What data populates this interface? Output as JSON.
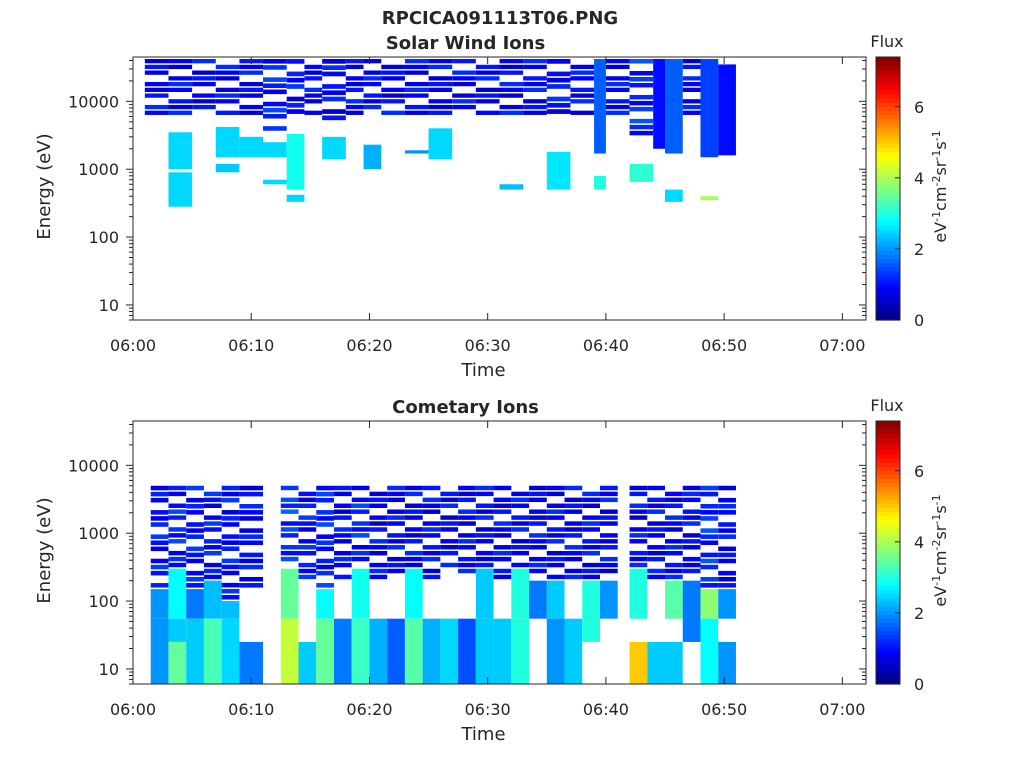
{
  "figure_title": "RPCICA091113T06.PNG",
  "colormap": "jet",
  "chart_data": [
    {
      "type": "heatmap",
      "title": "Solar Wind Ions",
      "xlabel": "Time",
      "ylabel": "Energy (eV)",
      "yscale": "log",
      "ylim": [
        6,
        45000
      ],
      "xlim": [
        "06:00",
        "07:02"
      ],
      "x_ticks": [
        "06:00",
        "06:10",
        "06:20",
        "06:30",
        "06:40",
        "06:50",
        "07:00"
      ],
      "y_ticks": [
        "10",
        "100",
        "1000",
        "10000"
      ],
      "colorbar": {
        "title": "Flux",
        "label": "eV-1cm-2sr-1s-1",
        "range": [
          0,
          7.4
        ],
        "ticks": [
          "0",
          "2",
          "4",
          "6"
        ]
      },
      "columns": [
        {
          "start": "06:01",
          "end": "06:03",
          "bins": [
            [
              6000,
              42000,
              1.0
            ]
          ]
        },
        {
          "start": "06:03",
          "end": "06:05",
          "bins": [
            [
              6000,
              42000,
              1.0
            ],
            [
              1000,
              3500,
              2.5
            ],
            [
              280,
              900,
              2.5
            ]
          ]
        },
        {
          "start": "06:05",
          "end": "06:07",
          "bins": [
            [
              6000,
              42000,
              1.0
            ]
          ]
        },
        {
          "start": "06:07",
          "end": "06:09",
          "bins": [
            [
              6000,
              42000,
              1.0
            ],
            [
              1500,
              4200,
              2.5
            ],
            [
              900,
              1200,
              2.4
            ]
          ]
        },
        {
          "start": "06:09",
          "end": "06:11",
          "bins": [
            [
              6000,
              42000,
              1.0
            ],
            [
              1500,
              3000,
              2.5
            ]
          ]
        },
        {
          "start": "06:11",
          "end": "06:13",
          "bins": [
            [
              3500,
              42000,
              1.2
            ],
            [
              1500,
              2500,
              2.5
            ],
            [
              600,
              700,
              2.5
            ]
          ]
        },
        {
          "start": "06:13",
          "end": "06:14.5",
          "bins": [
            [
              5000,
              42000,
              1.1
            ],
            [
              500,
              3300,
              2.9
            ],
            [
              330,
              420,
              2.5
            ]
          ]
        },
        {
          "start": "06:14.5",
          "end": "06:16",
          "bins": [
            [
              6000,
              42000,
              1.0
            ]
          ]
        },
        {
          "start": "06:16",
          "end": "06:18",
          "bins": [
            [
              5000,
              42000,
              1.0
            ],
            [
              1400,
              3000,
              2.5
            ]
          ]
        },
        {
          "start": "06:18",
          "end": "06:19.5",
          "bins": [
            [
              6000,
              42000,
              1.0
            ]
          ]
        },
        {
          "start": "06:19.5",
          "end": "06:21",
          "bins": [
            [
              6000,
              42000,
              1.0
            ],
            [
              1000,
              2300,
              2.2
            ]
          ]
        },
        {
          "start": "06:21",
          "end": "06:23",
          "bins": [
            [
              6000,
              42000,
              1.0
            ]
          ]
        },
        {
          "start": "06:23",
          "end": "06:25",
          "bins": [
            [
              6000,
              42000,
              1.0
            ],
            [
              1700,
              1900,
              2.0
            ]
          ]
        },
        {
          "start": "06:25",
          "end": "06:27",
          "bins": [
            [
              6000,
              42000,
              1.0
            ],
            [
              1400,
              4000,
              2.5
            ]
          ]
        },
        {
          "start": "06:27",
          "end": "06:29",
          "bins": [
            [
              6000,
              42000,
              1.0
            ]
          ]
        },
        {
          "start": "06:29",
          "end": "06:31",
          "bins": [
            [
              6000,
              42000,
              1.0
            ]
          ]
        },
        {
          "start": "06:31",
          "end": "06:33",
          "bins": [
            [
              6000,
              42000,
              1.0
            ],
            [
              500,
              600,
              2.3
            ]
          ]
        },
        {
          "start": "06:33",
          "end": "06:35",
          "bins": [
            [
              6000,
              42000,
              1.0
            ]
          ]
        },
        {
          "start": "06:35",
          "end": "06:37",
          "bins": [
            [
              5000,
              42000,
              1.1
            ],
            [
              500,
              1800,
              2.6
            ]
          ]
        },
        {
          "start": "06:37",
          "end": "06:39",
          "bins": [
            [
              6000,
              42000,
              1.0
            ]
          ]
        },
        {
          "start": "06:39",
          "end": "06:40",
          "bins": [
            [
              1700,
              42000,
              1.6
            ],
            [
              500,
              800,
              3.0
            ]
          ]
        },
        {
          "start": "06:40",
          "end": "06:42",
          "bins": [
            [
              6000,
              42000,
              1.0
            ]
          ]
        },
        {
          "start": "06:42",
          "end": "06:44",
          "bins": [
            [
              3000,
              42000,
              1.3
            ],
            [
              650,
              1200,
              3.1
            ]
          ]
        },
        {
          "start": "06:44",
          "end": "06:45",
          "bins": [
            [
              2000,
              42000,
              1.0
            ]
          ]
        },
        {
          "start": "06:45",
          "end": "06:46.5",
          "bins": [
            [
              1700,
              42000,
              1.6
            ],
            [
              330,
              500,
              2.5
            ]
          ]
        },
        {
          "start": "06:46.5",
          "end": "06:48",
          "bins": [
            [
              6000,
              42000,
              1.0
            ]
          ]
        },
        {
          "start": "06:48",
          "end": "06:49.5",
          "bins": [
            [
              1500,
              42000,
              1.4
            ],
            [
              350,
              400,
              4.0
            ]
          ]
        },
        {
          "start": "06:49.5",
          "end": "06:51",
          "bins": [
            [
              1600,
              35000,
              1.0
            ]
          ]
        }
      ]
    },
    {
      "type": "heatmap",
      "title": "Cometary Ions",
      "xlabel": "Time",
      "ylabel": "Energy (eV)",
      "yscale": "log",
      "ylim": [
        6,
        45000
      ],
      "xlim": [
        "06:00",
        "07:02"
      ],
      "x_ticks": [
        "06:00",
        "06:10",
        "06:20",
        "06:30",
        "06:40",
        "06:50",
        "07:00"
      ],
      "y_ticks": [
        "10",
        "100",
        "1000",
        "10000"
      ],
      "colorbar": {
        "title": "Flux",
        "label": "eV-1cm-2sr-1s-1",
        "range": [
          0,
          7.4
        ],
        "ticks": [
          "0",
          "2",
          "4",
          "6"
        ]
      },
      "columns": [
        {
          "start": "06:01.5",
          "end": "06:03",
          "bins": [
            [
              150,
              5000,
              1.1
            ],
            [
              55,
              150,
              2.0
            ],
            [
              6,
              55,
              2.0
            ]
          ]
        },
        {
          "start": "06:03",
          "end": "06:04.5",
          "bins": [
            [
              300,
              5000,
              1.2
            ],
            [
              55,
              300,
              2.8
            ],
            [
              25,
              55,
              2.4
            ],
            [
              6,
              25,
              3.5
            ]
          ]
        },
        {
          "start": "06:04.5",
          "end": "06:06",
          "bins": [
            [
              150,
              5000,
              1.1
            ],
            [
              55,
              150,
              1.8
            ],
            [
              6,
              55,
              2.4
            ]
          ]
        },
        {
          "start": "06:06",
          "end": "06:07.5",
          "bins": [
            [
              200,
              5000,
              1.1
            ],
            [
              55,
              200,
              2.3
            ],
            [
              6,
              55,
              3.3
            ]
          ]
        },
        {
          "start": "06:07.5",
          "end": "06:09",
          "bins": [
            [
              100,
              5000,
              1.1
            ],
            [
              55,
              100,
              2.3
            ],
            [
              6,
              55,
              2.5
            ]
          ]
        },
        {
          "start": "06:09",
          "end": "06:11",
          "bins": [
            [
              150,
              5000,
              1.0
            ],
            [
              6,
              25,
              1.8
            ]
          ]
        },
        {
          "start": "06:12.5",
          "end": "06:14",
          "bins": [
            [
              300,
              5000,
              1.4
            ],
            [
              55,
              300,
              3.5
            ],
            [
              6,
              55,
              4.2
            ]
          ]
        },
        {
          "start": "06:14",
          "end": "06:15.5",
          "bins": [
            [
              200,
              5000,
              1.1
            ],
            [
              6,
              25,
              2.4
            ]
          ]
        },
        {
          "start": "06:15.5",
          "end": "06:17",
          "bins": [
            [
              150,
              5000,
              1.2
            ],
            [
              55,
              150,
              2.8
            ],
            [
              6,
              55,
              3.5
            ]
          ]
        },
        {
          "start": "06:17",
          "end": "06:18.5",
          "bins": [
            [
              200,
              5000,
              1.0
            ],
            [
              6,
              55,
              1.8
            ]
          ]
        },
        {
          "start": "06:18.5",
          "end": "06:20",
          "bins": [
            [
              300,
              5000,
              1.2
            ],
            [
              55,
              300,
              2.9
            ],
            [
              6,
              55,
              3.2
            ]
          ]
        },
        {
          "start": "06:20",
          "end": "06:21.5",
          "bins": [
            [
              200,
              5000,
              1.0
            ],
            [
              6,
              55,
              2.2
            ]
          ]
        },
        {
          "start": "06:21.5",
          "end": "06:23",
          "bins": [
            [
              200,
              5000,
              1.0
            ],
            [
              6,
              55,
              1.6
            ]
          ]
        },
        {
          "start": "06:23",
          "end": "06:24.5",
          "bins": [
            [
              300,
              5000,
              1.0
            ],
            [
              55,
              300,
              2.8
            ],
            [
              6,
              55,
              3.4
            ]
          ]
        },
        {
          "start": "06:24.5",
          "end": "06:26",
          "bins": [
            [
              200,
              5000,
              1.0
            ],
            [
              6,
              55,
              2.2
            ]
          ]
        },
        {
          "start": "06:26",
          "end": "06:27.5",
          "bins": [
            [
              300,
              5000,
              1.0
            ],
            [
              6,
              55,
              2.5
            ]
          ]
        },
        {
          "start": "06:27.5",
          "end": "06:29",
          "bins": [
            [
              200,
              5000,
              1.0
            ],
            [
              6,
              55,
              1.5
            ]
          ]
        },
        {
          "start": "06:29",
          "end": "06:30.5",
          "bins": [
            [
              300,
              5000,
              1.0
            ],
            [
              55,
              300,
              2.4
            ],
            [
              6,
              55,
              2.4
            ]
          ]
        },
        {
          "start": "06:30.5",
          "end": "06:32",
          "bins": [
            [
              200,
              5000,
              1.0
            ],
            [
              6,
              55,
              2.4
            ]
          ]
        },
        {
          "start": "06:32",
          "end": "06:33.5",
          "bins": [
            [
              300,
              5000,
              1.0
            ],
            [
              55,
              300,
              3.0
            ],
            [
              6,
              55,
              3.0
            ]
          ]
        },
        {
          "start": "06:33.5",
          "end": "06:35",
          "bins": [
            [
              200,
              5000,
              1.0
            ],
            [
              55,
              200,
              1.8
            ]
          ]
        },
        {
          "start": "06:35",
          "end": "06:36.5",
          "bins": [
            [
              200,
              5000,
              1.0
            ],
            [
              55,
              200,
              2.4
            ],
            [
              6,
              55,
              2.0
            ]
          ]
        },
        {
          "start": "06:36.5",
          "end": "06:38",
          "bins": [
            [
              200,
              5000,
              1.0
            ],
            [
              6,
              55,
              2.4
            ]
          ]
        },
        {
          "start": "06:38",
          "end": "06:39.5",
          "bins": [
            [
              200,
              5000,
              1.0
            ],
            [
              25,
              200,
              3.0
            ]
          ]
        },
        {
          "start": "06:39.5",
          "end": "06:41",
          "bins": [
            [
              200,
              5000,
              1.0
            ],
            [
              55,
              200,
              2.0
            ]
          ]
        },
        {
          "start": "06:42",
          "end": "06:43.5",
          "bins": [
            [
              300,
              5000,
              1.0
            ],
            [
              55,
              300,
              3.0
            ],
            [
              6,
              25,
              5.0
            ]
          ]
        },
        {
          "start": "06:43.5",
          "end": "06:45",
          "bins": [
            [
              200,
              5000,
              1.0
            ],
            [
              6,
              25,
              2.4
            ]
          ]
        },
        {
          "start": "06:45",
          "end": "06:46.5",
          "bins": [
            [
              200,
              5000,
              1.0
            ],
            [
              55,
              200,
              3.4
            ],
            [
              6,
              25,
              2.4
            ]
          ]
        },
        {
          "start": "06:46.5",
          "end": "06:48",
          "bins": [
            [
              200,
              5000,
              1.0
            ],
            [
              25,
              200,
              1.8
            ]
          ]
        },
        {
          "start": "06:48",
          "end": "06:49.5",
          "bins": [
            [
              150,
              5000,
              1.3
            ],
            [
              55,
              150,
              3.8
            ],
            [
              6,
              55,
              2.8
            ]
          ]
        },
        {
          "start": "06:49.5",
          "end": "06:51",
          "bins": [
            [
              150,
              5000,
              1.0
            ],
            [
              55,
              150,
              2.0
            ],
            [
              6,
              25,
              2.0
            ]
          ]
        }
      ]
    }
  ]
}
